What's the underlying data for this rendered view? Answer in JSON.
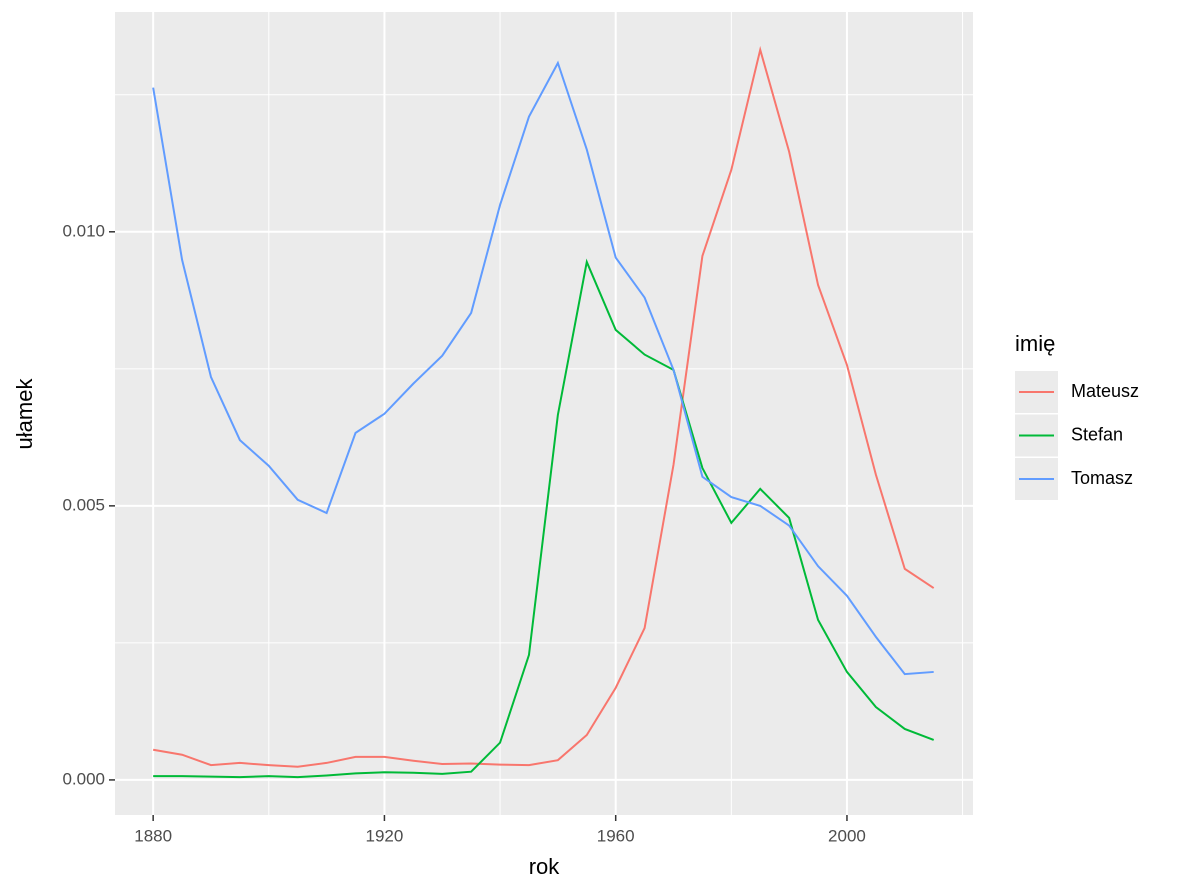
{
  "chart_data": {
    "type": "line",
    "x_label": "rok",
    "y_label": "ułamek",
    "legend_title": "imię",
    "legend_position": "right",
    "x": [
      1880,
      1885,
      1890,
      1895,
      1900,
      1905,
      1910,
      1915,
      1920,
      1925,
      1930,
      1935,
      1940,
      1945,
      1950,
      1955,
      1960,
      1965,
      1970,
      1975,
      1980,
      1985,
      1990,
      1995,
      2000,
      2005,
      2010,
      2015
    ],
    "series": [
      {
        "name": "Mateusz",
        "color": "#F8766D",
        "values": [
          0.00055,
          0.00046,
          0.00027,
          0.00031,
          0.00027,
          0.00024,
          0.00031,
          0.00042,
          0.00042,
          0.00035,
          0.00029,
          0.0003,
          0.00028,
          0.00027,
          0.00036,
          0.00082,
          0.00168,
          0.00277,
          0.00575,
          0.00956,
          0.01113,
          0.01332,
          0.01146,
          0.00903,
          0.00757,
          0.00557,
          0.00385,
          0.0035
        ]
      },
      {
        "name": "Stefan",
        "color": "#00BA38",
        "values": [
          7e-05,
          7e-05,
          6e-05,
          5e-05,
          7e-05,
          5e-05,
          8e-05,
          0.00012,
          0.00014,
          0.00013,
          0.00011,
          0.00015,
          0.00068,
          0.00228,
          0.00666,
          0.00945,
          0.00821,
          0.00776,
          0.00748,
          0.00569,
          0.00469,
          0.00531,
          0.00478,
          0.00292,
          0.00197,
          0.00133,
          0.00093,
          0.00073
        ]
      },
      {
        "name": "Tomasz",
        "color": "#619CFF",
        "values": [
          0.01263,
          0.00949,
          0.00735,
          0.0062,
          0.00573,
          0.00511,
          0.00487,
          0.00633,
          0.00668,
          0.00723,
          0.00774,
          0.00852,
          0.01049,
          0.0121,
          0.01308,
          0.0115,
          0.00953,
          0.0088,
          0.00748,
          0.00553,
          0.00516,
          0.005,
          0.00464,
          0.0039,
          0.00336,
          0.00261,
          0.00193,
          0.00197
        ]
      }
    ],
    "xlim": [
      1873.4,
      2021.8
    ],
    "ylim": [
      -0.00064,
      0.01401
    ],
    "xticks": [
      1880,
      1920,
      1960,
      2000
    ],
    "minor_xticks": [
      1900,
      1940,
      1980,
      2020
    ],
    "yticks": [
      {
        "value": 0,
        "label": "0.000"
      },
      {
        "value": 0.005,
        "label": "0.005"
      },
      {
        "value": 0.01,
        "label": "0.010"
      }
    ],
    "minor_yticks": [
      0.0025,
      0.0075,
      0.0125
    ],
    "grid": true,
    "panel_color": "#EBEBEB"
  }
}
